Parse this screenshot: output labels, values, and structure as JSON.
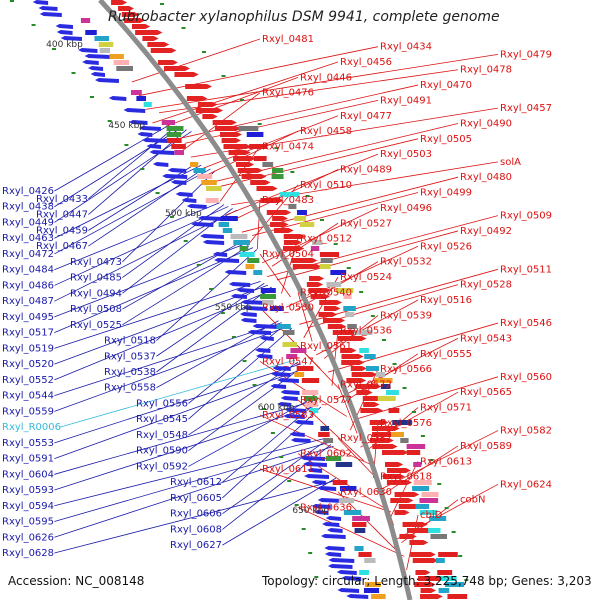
{
  "header": {
    "title": "Rubrobacter xylanophilus DSM 9941, complete genome"
  },
  "footer": {
    "accession": "Accession: NC_008148",
    "summary": "Topology: circular; Length: 3,225,748 bp; Genes: 3,203"
  },
  "colors": {
    "forward": "#e32222",
    "reverse": "#2a2ae0",
    "rna": "#22bbdd",
    "backbone": "#8c8c8c"
  },
  "scale_labels": [
    "400 kbp",
    "450 kbp",
    "500 kbp",
    "550 kbp",
    "600 kbp",
    "650 kbp"
  ],
  "left_labels": [
    {
      "text": "Rxyl_0426",
      "color": "#1a1aaa"
    },
    {
      "text": "Rxyl_0433",
      "color": "#1a1aaa"
    },
    {
      "text": "Rxyl_0438",
      "color": "#1a1aaa"
    },
    {
      "text": "Rxyl_0447",
      "color": "#1a1aaa"
    },
    {
      "text": "Rxyl_0449",
      "color": "#1a1aaa"
    },
    {
      "text": "Rxyl_0459",
      "color": "#1a1aaa"
    },
    {
      "text": "Rxyl_0463",
      "color": "#1a1aaa"
    },
    {
      "text": "Rxyl_0467",
      "color": "#1a1aaa"
    },
    {
      "text": "Rxyl_0472",
      "color": "#1a1aaa"
    },
    {
      "text": "Rxyl_0473",
      "color": "#1a1aaa"
    },
    {
      "text": "Rxyl_0484",
      "color": "#1a1aaa"
    },
    {
      "text": "Rxyl_0485",
      "color": "#1a1aaa"
    },
    {
      "text": "Rxyl_0486",
      "color": "#1a1aaa"
    },
    {
      "text": "Rxyl_0494",
      "color": "#1a1aaa"
    },
    {
      "text": "Rxyl_0487",
      "color": "#1a1aaa"
    },
    {
      "text": "Rxyl_0508",
      "color": "#1a1aaa"
    },
    {
      "text": "Rxyl_0495",
      "color": "#1a1aaa"
    },
    {
      "text": "Rxyl_0525",
      "color": "#1a1aaa"
    },
    {
      "text": "Rxyl_0517",
      "color": "#1a1aaa"
    },
    {
      "text": "Rxyl_0518",
      "color": "#1a1aaa"
    },
    {
      "text": "Rxyl_0519",
      "color": "#1a1aaa"
    },
    {
      "text": "Rxyl_0537",
      "color": "#1a1aaa"
    },
    {
      "text": "Rxyl_0520",
      "color": "#1a1aaa"
    },
    {
      "text": "Rxyl_0538",
      "color": "#1a1aaa"
    },
    {
      "text": "Rxyl_0552",
      "color": "#1a1aaa"
    },
    {
      "text": "Rxyl_0558",
      "color": "#1a1aaa"
    },
    {
      "text": "Rxyl_0544",
      "color": "#1a1aaa"
    },
    {
      "text": "Rxyl_0556",
      "color": "#1a1aaa"
    },
    {
      "text": "Rxyl_0559",
      "color": "#1a1aaa"
    },
    {
      "text": "Rxyl_0545",
      "color": "#1a1aaa"
    },
    {
      "text": "Rxyl_R0006",
      "color": "#33bbdd"
    },
    {
      "text": "Rxyl_0548",
      "color": "#1a1aaa"
    },
    {
      "text": "Rxyl_0553",
      "color": "#1a1aaa"
    },
    {
      "text": "Rxyl_0590",
      "color": "#1a1aaa"
    },
    {
      "text": "Rxyl_0591",
      "color": "#1a1aaa"
    },
    {
      "text": "Rxyl_0592",
      "color": "#1a1aaa"
    },
    {
      "text": "Rxyl_0604",
      "color": "#1a1aaa"
    },
    {
      "text": "Rxyl_0612",
      "color": "#1a1aaa"
    },
    {
      "text": "Rxyl_0593",
      "color": "#1a1aaa"
    },
    {
      "text": "Rxyl_0605",
      "color": "#1a1aaa"
    },
    {
      "text": "Rxyl_0594",
      "color": "#1a1aaa"
    },
    {
      "text": "Rxyl_0606",
      "color": "#1a1aaa"
    },
    {
      "text": "Rxyl_0595",
      "color": "#1a1aaa"
    },
    {
      "text": "Rxyl_0608",
      "color": "#1a1aaa"
    },
    {
      "text": "Rxyl_0626",
      "color": "#1a1aaa"
    },
    {
      "text": "Rxyl_0627",
      "color": "#1a1aaa"
    },
    {
      "text": "Rxyl_0628",
      "color": "#1a1aaa"
    }
  ],
  "right_labels": [
    {
      "text": "Rxyl_0481",
      "color": "#dd1111"
    },
    {
      "text": "Rxyl_0434",
      "color": "#dd1111"
    },
    {
      "text": "Rxyl_0479",
      "color": "#dd1111"
    },
    {
      "text": "Rxyl_0456",
      "color": "#dd1111"
    },
    {
      "text": "Rxyl_0478",
      "color": "#dd1111"
    },
    {
      "text": "Rxyl_0446",
      "color": "#dd1111"
    },
    {
      "text": "Rxyl_0470",
      "color": "#dd1111"
    },
    {
      "text": "Rxyl_0476",
      "color": "#dd1111"
    },
    {
      "text": "Rxyl_0491",
      "color": "#dd1111"
    },
    {
      "text": "Rxyl_0457",
      "color": "#dd1111"
    },
    {
      "text": "Rxyl_0477",
      "color": "#dd1111"
    },
    {
      "text": "Rxyl_0490",
      "color": "#dd1111"
    },
    {
      "text": "Rxyl_0458",
      "color": "#dd1111"
    },
    {
      "text": "Rxyl_0505",
      "color": "#dd1111"
    },
    {
      "text": "Rxyl_0474",
      "color": "#dd1111"
    },
    {
      "text": "Rxyl_0503",
      "color": "#dd1111"
    },
    {
      "text": "solA",
      "color": "#dd1111"
    },
    {
      "text": "Rxyl_0489",
      "color": "#dd1111"
    },
    {
      "text": "Rxyl_0480",
      "color": "#dd1111"
    },
    {
      "text": "Rxyl_0510",
      "color": "#dd1111"
    },
    {
      "text": "Rxyl_0499",
      "color": "#dd1111"
    },
    {
      "text": "Rxyl_0483",
      "color": "#dd1111"
    },
    {
      "text": "Rxyl_0496",
      "color": "#dd1111"
    },
    {
      "text": "Rxyl_0509",
      "color": "#dd1111"
    },
    {
      "text": "Rxyl_0527",
      "color": "#dd1111"
    },
    {
      "text": "Rxyl_0492",
      "color": "#dd1111"
    },
    {
      "text": "Rxyl_0512",
      "color": "#dd1111"
    },
    {
      "text": "Rxyl_0526",
      "color": "#dd1111"
    },
    {
      "text": "Rxyl_0504",
      "color": "#dd1111"
    },
    {
      "text": "Rxyl_0532",
      "color": "#dd1111"
    },
    {
      "text": "Rxyl_0511",
      "color": "#dd1111"
    },
    {
      "text": "Rxyl_0524",
      "color": "#dd1111"
    },
    {
      "text": "Rxyl_0528",
      "color": "#dd1111"
    },
    {
      "text": "Rxyl_0540",
      "color": "#dd1111"
    },
    {
      "text": "Rxyl_0516",
      "color": "#dd1111"
    },
    {
      "text": "Rxyl_0530",
      "color": "#dd1111"
    },
    {
      "text": "Rxyl_0539",
      "color": "#dd1111"
    },
    {
      "text": "Rxyl_0546",
      "color": "#dd1111"
    },
    {
      "text": "Rxyl_0536",
      "color": "#dd1111"
    },
    {
      "text": "Rxyl_0543",
      "color": "#dd1111"
    },
    {
      "text": "Rxyl_0561",
      "color": "#dd1111"
    },
    {
      "text": "Rxyl_0555",
      "color": "#dd1111"
    },
    {
      "text": "Rxyl_0547",
      "color": "#dd1111"
    },
    {
      "text": "Rxyl_0566",
      "color": "#dd1111"
    },
    {
      "text": "Rxyl_0560",
      "color": "#dd1111"
    },
    {
      "text": "Rxyl_0572",
      "color": "#dd1111"
    },
    {
      "text": "Rxyl_0565",
      "color": "#dd1111"
    },
    {
      "text": "Rxyl_0577",
      "color": "#dd1111"
    },
    {
      "text": "Rxyl_0571",
      "color": "#dd1111"
    },
    {
      "text": "Rxyl_0583",
      "color": "#dd1111"
    },
    {
      "text": "Rxyl_0576",
      "color": "#dd1111"
    },
    {
      "text": "Rxyl_0582",
      "color": "#dd1111"
    },
    {
      "text": "Rxyl_0587",
      "color": "#dd1111"
    },
    {
      "text": "Rxyl_0589",
      "color": "#dd1111"
    },
    {
      "text": "Rxyl_0602",
      "color": "#dd1111"
    },
    {
      "text": "Rxyl_0613",
      "color": "#dd1111"
    },
    {
      "text": "Rxyl_0611",
      "color": "#dd1111"
    },
    {
      "text": "Rxyl_0618",
      "color": "#dd1111"
    },
    {
      "text": "Rxyl_0624",
      "color": "#dd1111"
    },
    {
      "text": "Rxyl_0630",
      "color": "#dd1111"
    },
    {
      "text": "cobN",
      "color": "#dd1111"
    },
    {
      "text": "Rxyl_0636",
      "color": "#dd1111"
    },
    {
      "text": "cbiD",
      "color": "#dd1111"
    }
  ]
}
